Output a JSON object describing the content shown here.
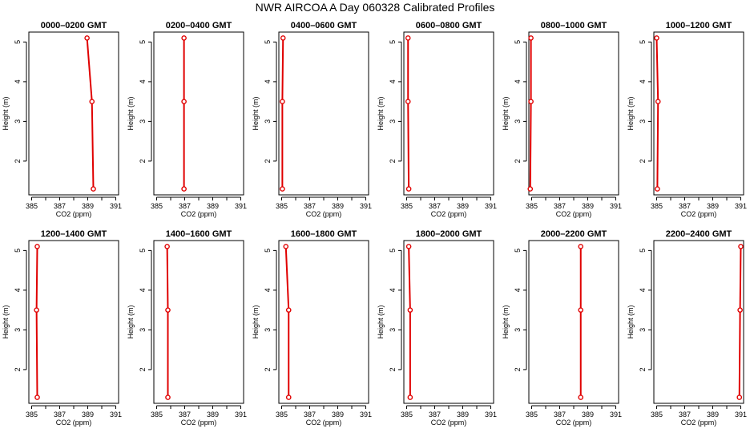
{
  "title": "NWR AIRCOA A  Day 060328  Calibrated Profiles",
  "colors": {
    "profile": "#e00000",
    "axis": "#000000"
  },
  "chart_data": {
    "type": "line",
    "xlabel": "CO2 (ppm)",
    "ylabel": "Height (m)",
    "xlim": [
      384.8,
      391.2
    ],
    "ylim": [
      1.15,
      5.25
    ],
    "xticks": [
      "385",
      "387",
      "389",
      "391"
    ],
    "yticks": [
      "2",
      "3",
      "4",
      "5"
    ],
    "grid": false,
    "panels": [
      {
        "title": "0000–0200 GMT",
        "points": [
          {
            "x": 388.95,
            "y": 5.1
          },
          {
            "x": 389.3,
            "y": 3.5
          },
          {
            "x": 389.4,
            "y": 1.3
          }
        ]
      },
      {
        "title": "0200–0400 GMT",
        "points": [
          {
            "x": 386.95,
            "y": 5.1
          },
          {
            "x": 386.95,
            "y": 3.5
          },
          {
            "x": 386.95,
            "y": 1.3
          }
        ]
      },
      {
        "title": "0400–0600 GMT",
        "points": [
          {
            "x": 385.1,
            "y": 5.1
          },
          {
            "x": 385.05,
            "y": 3.5
          },
          {
            "x": 385.05,
            "y": 1.3
          }
        ]
      },
      {
        "title": "0600–0800 GMT",
        "points": [
          {
            "x": 385.1,
            "y": 5.1
          },
          {
            "x": 385.1,
            "y": 3.5
          },
          {
            "x": 385.15,
            "y": 1.3
          }
        ]
      },
      {
        "title": "0800–1000 GMT",
        "points": [
          {
            "x": 384.95,
            "y": 5.1
          },
          {
            "x": 384.95,
            "y": 3.5
          },
          {
            "x": 384.9,
            "y": 1.3
          }
        ]
      },
      {
        "title": "1000–1200 GMT",
        "points": [
          {
            "x": 385.0,
            "y": 5.1
          },
          {
            "x": 385.1,
            "y": 3.5
          },
          {
            "x": 385.05,
            "y": 1.3
          }
        ]
      },
      {
        "title": "1200–1400 GMT",
        "points": [
          {
            "x": 385.4,
            "y": 5.1
          },
          {
            "x": 385.35,
            "y": 3.5
          },
          {
            "x": 385.4,
            "y": 1.3
          }
        ]
      },
      {
        "title": "1400–1600 GMT",
        "points": [
          {
            "x": 385.75,
            "y": 5.1
          },
          {
            "x": 385.8,
            "y": 3.5
          },
          {
            "x": 385.8,
            "y": 1.3
          }
        ]
      },
      {
        "title": "1600–1800 GMT",
        "points": [
          {
            "x": 385.3,
            "y": 5.1
          },
          {
            "x": 385.5,
            "y": 3.5
          },
          {
            "x": 385.5,
            "y": 1.3
          }
        ]
      },
      {
        "title": "1800–2000 GMT",
        "points": [
          {
            "x": 385.15,
            "y": 5.1
          },
          {
            "x": 385.25,
            "y": 3.5
          },
          {
            "x": 385.25,
            "y": 1.3
          }
        ]
      },
      {
        "title": "2000–2200 GMT",
        "points": [
          {
            "x": 388.5,
            "y": 5.1
          },
          {
            "x": 388.5,
            "y": 3.5
          },
          {
            "x": 388.5,
            "y": 1.3
          }
        ]
      },
      {
        "title": "2200–2400 GMT",
        "points": [
          {
            "x": 391.0,
            "y": 5.1
          },
          {
            "x": 390.95,
            "y": 3.5
          },
          {
            "x": 390.9,
            "y": 1.3
          }
        ]
      }
    ]
  }
}
